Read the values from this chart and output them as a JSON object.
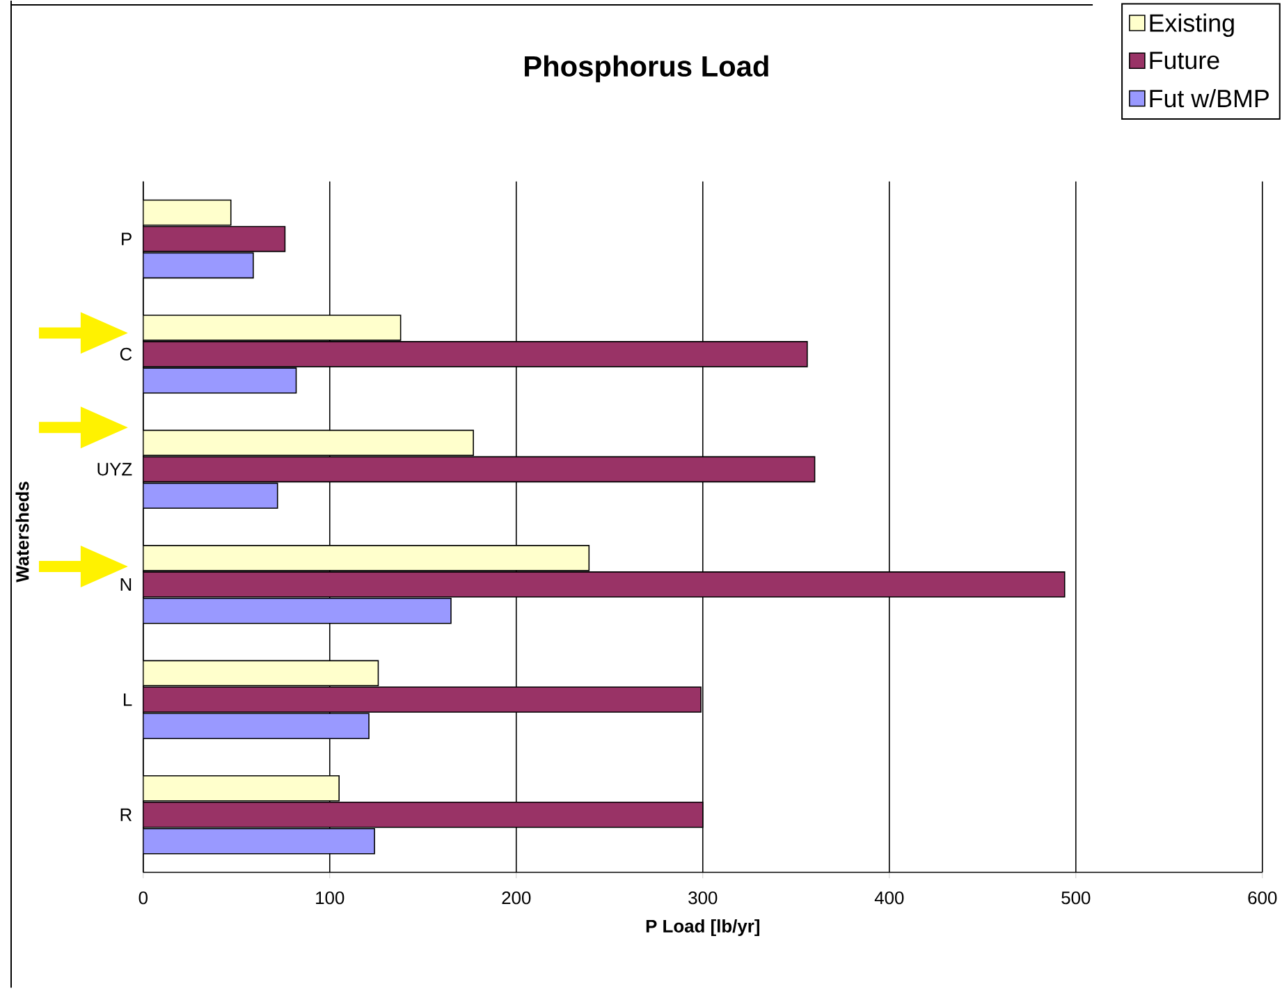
{
  "chart_data": {
    "type": "bar",
    "orientation": "horizontal",
    "title": "Phosphorus Load",
    "xlabel": "P Load [lb/yr]",
    "ylabel": "Watersheds",
    "categories": [
      "P",
      "C",
      "UYZ",
      "N",
      "L",
      "R"
    ],
    "series": [
      {
        "name": "Existing",
        "color": "#ffffcc",
        "values": [
          47,
          138,
          177,
          239,
          126,
          105
        ]
      },
      {
        "name": "Future",
        "color": "#993366",
        "values": [
          76,
          356,
          360,
          494,
          299,
          300
        ]
      },
      {
        "name": "Fut w/BMP",
        "color": "#9999ff",
        "values": [
          59,
          82,
          72,
          165,
          121,
          124
        ]
      }
    ],
    "xlim": [
      0,
      600
    ],
    "xticks": [
      0,
      100,
      200,
      300,
      400,
      500,
      600
    ],
    "grid": "x",
    "legend": "top right"
  }
}
